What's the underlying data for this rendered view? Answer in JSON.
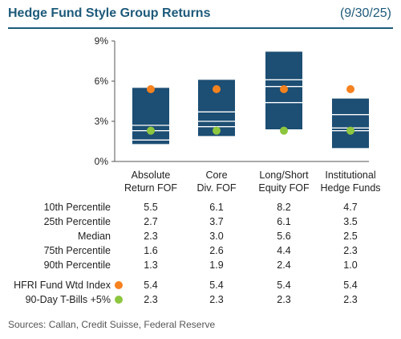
{
  "header": {
    "title": "Hedge Fund Style Group Returns",
    "date": "(9/30/25)"
  },
  "chart_data": {
    "type": "box",
    "ylim": [
      0,
      9
    ],
    "yticks": [
      "0%",
      "3%",
      "6%",
      "9%"
    ],
    "ytick_values": [
      0,
      3,
      6,
      9
    ],
    "categories": [
      [
        "Absolute",
        "Return FOF"
      ],
      [
        "Core",
        "Div. FOF"
      ],
      [
        "Long/Short",
        "Equity FOF"
      ],
      [
        "Institutional",
        "Hedge Funds"
      ]
    ],
    "percentiles": [
      {
        "label": "10th Percentile",
        "values": [
          5.5,
          6.1,
          8.2,
          4.7
        ]
      },
      {
        "label": "25th Percentile",
        "values": [
          2.7,
          3.7,
          6.1,
          3.5
        ]
      },
      {
        "label": "Median",
        "values": [
          2.3,
          3.0,
          5.6,
          2.5
        ]
      },
      {
        "label": "75th Percentile",
        "values": [
          1.6,
          2.6,
          4.4,
          2.3
        ]
      },
      {
        "label": "90th Percentile",
        "values": [
          1.3,
          1.9,
          2.4,
          1.0
        ]
      }
    ],
    "markers": [
      {
        "label": "HFRI Fund Wtd Index",
        "color": "#f5821f",
        "values": [
          5.4,
          5.4,
          5.4,
          5.4
        ]
      },
      {
        "label": "90-Day T-Bills +5%",
        "color": "#8dc63f",
        "values": [
          2.3,
          2.3,
          2.3,
          2.3
        ]
      }
    ],
    "box_color": "#1d4e73",
    "line_color": "#ffffff"
  },
  "footer": {
    "sources": "Sources: Callan, Credit Suisse, Federal Reserve"
  }
}
